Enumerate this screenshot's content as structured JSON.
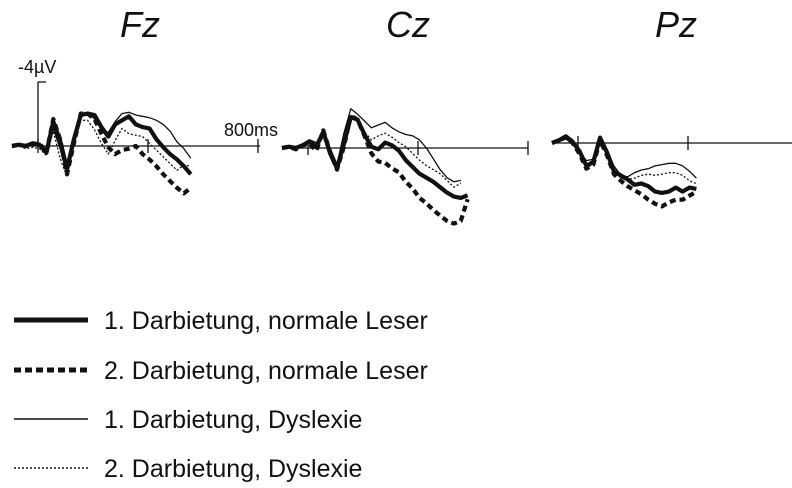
{
  "chart_data": {
    "type": "line",
    "description_units": {
      "x": "ms",
      "y": "µV (negative plotted up)"
    },
    "scale_bar": {
      "amplitude_label": "-4µV",
      "time_label": "800ms",
      "amplitude_uv": -4,
      "time_ms": 800
    },
    "x": [
      0,
      25,
      50,
      75,
      100,
      125,
      150,
      175,
      200,
      225,
      250,
      275,
      300,
      325,
      350,
      375,
      400,
      425,
      450,
      475,
      500,
      525,
      550,
      575,
      600,
      625,
      650,
      675,
      700,
      725,
      750,
      775,
      800,
      825,
      850,
      875,
      900,
      925,
      950,
      975,
      1000
    ],
    "legend": [
      {
        "id": "s1",
        "label": "1. Darbietung, normale Leser",
        "style": "thick-solid"
      },
      {
        "id": "s2",
        "label": "2. Darbietung, normale Leser",
        "style": "thick-dotted"
      },
      {
        "id": "s3",
        "label": "1. Darbietung, Dyslexie",
        "style": "thin-solid"
      },
      {
        "id": "s4",
        "label": "2. Darbietung, Dyslexie",
        "style": "thin-dotted"
      }
    ],
    "panels": [
      {
        "title": "Fz",
        "series": [
          {
            "ref": "s1",
            "values": [
              0.0,
              -0.1,
              0.0,
              -0.2,
              -0.1,
              0.5,
              -1.8,
              -0.4,
              1.7,
              -0.5,
              -2.3,
              -2.4,
              -2.3,
              -1.4,
              -0.7,
              -1.6,
              -1.9,
              -2.2,
              -1.6,
              -1.4,
              -1.3,
              -0.5,
              0.1,
              0.6,
              1.0,
              1.5,
              2.1
            ]
          },
          {
            "ref": "s2",
            "values": [
              0.0,
              -0.1,
              0.0,
              -0.1,
              -0.2,
              0.5,
              -2.0,
              -0.5,
              2.1,
              -0.2,
              -2.4,
              -2.4,
              -2.0,
              -0.9,
              0.1,
              0.6,
              0.3,
              0.2,
              0.0,
              0.6,
              1.0,
              1.5,
              2.1,
              2.6,
              3.1,
              3.5,
              3.1
            ]
          },
          {
            "ref": "s3",
            "values": [
              0.1,
              0.0,
              0.0,
              -0.3,
              -0.2,
              0.6,
              -1.3,
              0.2,
              2.1,
              -0.2,
              -2.1,
              -2.5,
              -2.0,
              -1.2,
              -1.0,
              -1.8,
              -2.4,
              -2.5,
              -2.3,
              -2.2,
              -2.1,
              -1.9,
              -1.6,
              -1.1,
              -0.3,
              0.2,
              0.9
            ]
          },
          {
            "ref": "s4",
            "values": [
              0.1,
              0.0,
              0.2,
              0.1,
              0.2,
              0.7,
              -1.1,
              0.9,
              2.3,
              0.0,
              -1.9,
              -1.9,
              -1.2,
              -0.2,
              0.6,
              -0.4,
              -1.3,
              -0.9,
              -0.8,
              -0.7,
              -0.2,
              0.3,
              0.8,
              1.3,
              1.8,
              1.4,
              1.5
            ]
          }
        ]
      },
      {
        "title": "Cz",
        "series": [
          {
            "ref": "s1",
            "values": [
              0.0,
              -0.1,
              0.0,
              -0.2,
              -0.5,
              -0.1,
              -1.2,
              0.4,
              1.5,
              -0.3,
              -2.3,
              -2.1,
              -1.0,
              -0.1,
              0.1,
              -0.4,
              -0.2,
              0.2,
              0.9,
              1.4,
              1.9,
              2.2,
              2.5,
              2.9,
              3.3,
              3.6,
              3.7,
              3.5
            ]
          },
          {
            "ref": "s2",
            "values": [
              0.0,
              -0.1,
              0.1,
              -0.2,
              -0.3,
              0.2,
              -1.3,
              0.3,
              1.6,
              -0.1,
              -2.4,
              -2.1,
              -0.9,
              0.4,
              1.0,
              1.1,
              1.5,
              1.8,
              2.5,
              3.0,
              3.7,
              4.1,
              4.6,
              5.0,
              5.4,
              5.6,
              5.4,
              3.8
            ]
          },
          {
            "ref": "s3",
            "values": [
              0.0,
              0.0,
              0.1,
              -0.2,
              -0.6,
              -0.4,
              -1.3,
              0.0,
              1.2,
              -1.1,
              -2.9,
              -2.5,
              -2.0,
              -1.5,
              -1.7,
              -1.9,
              -1.5,
              -1.2,
              -1.0,
              -0.9,
              -0.6,
              0.0,
              0.8,
              1.6,
              2.2,
              2.5,
              2.4
            ]
          },
          {
            "ref": "s4",
            "values": [
              0.1,
              0.0,
              0.1,
              -0.1,
              -0.3,
              -0.1,
              -1.2,
              0.4,
              1.6,
              -0.2,
              -2.2,
              -2.1,
              -1.2,
              -0.6,
              -0.9,
              -1.1,
              -0.8,
              -0.4,
              -0.1,
              0.4,
              0.9,
              1.3,
              1.6,
              1.9,
              2.4,
              2.9,
              2.6
            ]
          }
        ]
      },
      {
        "title": "Pz",
        "series": [
          {
            "ref": "s1",
            "values": [
              0.0,
              -0.2,
              -0.5,
              -0.1,
              0.6,
              1.7,
              1.4,
              -0.4,
              0.7,
              2.1,
              2.4,
              2.7,
              3.1,
              3.0,
              3.2,
              3.6,
              3.7,
              3.6,
              3.3,
              3.6,
              3.3,
              3.4
            ]
          },
          {
            "ref": "s2",
            "values": [
              0.0,
              -0.2,
              -0.4,
              0.0,
              0.8,
              1.9,
              1.6,
              -0.2,
              0.9,
              2.3,
              2.8,
              3.2,
              3.5,
              3.8,
              4.2,
              4.5,
              4.7,
              4.4,
              4.2,
              4.2,
              3.9,
              3.6
            ]
          },
          {
            "ref": "s3",
            "values": [
              0.0,
              -0.1,
              -0.3,
              0.1,
              0.7,
              1.3,
              1.2,
              -0.3,
              0.5,
              1.7,
              2.4,
              2.5,
              2.2,
              2.0,
              1.9,
              1.7,
              1.6,
              1.5,
              1.5,
              1.7,
              2.1,
              2.6
            ]
          },
          {
            "ref": "s4",
            "values": [
              0.0,
              -0.2,
              -0.5,
              -0.1,
              0.6,
              1.8,
              1.6,
              -0.1,
              0.9,
              2.0,
              2.6,
              2.7,
              2.6,
              2.4,
              2.3,
              2.4,
              2.3,
              2.2,
              2.2,
              2.4,
              2.8,
              3.0
            ]
          }
        ]
      }
    ]
  }
}
